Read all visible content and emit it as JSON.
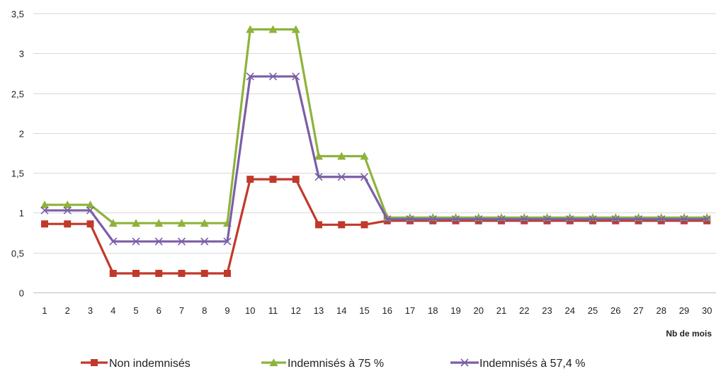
{
  "chart_data": {
    "type": "line",
    "x": [
      1,
      2,
      3,
      4,
      5,
      6,
      7,
      8,
      9,
      10,
      11,
      12,
      13,
      14,
      15,
      16,
      17,
      18,
      19,
      20,
      21,
      22,
      23,
      24,
      25,
      26,
      27,
      28,
      29,
      30
    ],
    "xlabel": "Nb de mois",
    "ylabel": "",
    "ylim": [
      0,
      3.5
    ],
    "yticks": [
      "0",
      "0,5",
      "1",
      "1,5",
      "2",
      "2,5",
      "3",
      "3,5"
    ],
    "grid": true,
    "legend_position": "bottom",
    "series": [
      {
        "name": "Non indemnisés",
        "color": "#c0392b",
        "marker": "square",
        "values": [
          0.86,
          0.86,
          0.86,
          0.24,
          0.24,
          0.24,
          0.24,
          0.24,
          0.24,
          1.42,
          1.42,
          1.42,
          0.85,
          0.85,
          0.85,
          0.9,
          0.9,
          0.9,
          0.9,
          0.9,
          0.9,
          0.9,
          0.9,
          0.9,
          0.9,
          0.9,
          0.9,
          0.9,
          0.9,
          0.9
        ]
      },
      {
        "name": "Indemnisés à 75 %",
        "color": "#8db33b",
        "marker": "triangle",
        "values": [
          1.1,
          1.1,
          1.1,
          0.87,
          0.87,
          0.87,
          0.87,
          0.87,
          0.87,
          3.3,
          3.3,
          3.3,
          1.71,
          1.71,
          1.71,
          0.94,
          0.94,
          0.94,
          0.94,
          0.94,
          0.94,
          0.94,
          0.94,
          0.94,
          0.94,
          0.94,
          0.94,
          0.94,
          0.94,
          0.94
        ]
      },
      {
        "name": "Indemnisés à 57,4 %",
        "color": "#7b5ea7",
        "marker": "x",
        "values": [
          1.03,
          1.03,
          1.03,
          0.64,
          0.64,
          0.64,
          0.64,
          0.64,
          0.64,
          2.71,
          2.71,
          2.71,
          1.45,
          1.45,
          1.45,
          0.92,
          0.92,
          0.92,
          0.92,
          0.92,
          0.92,
          0.92,
          0.92,
          0.92,
          0.92,
          0.92,
          0.92,
          0.92,
          0.92,
          0.92
        ]
      }
    ]
  }
}
